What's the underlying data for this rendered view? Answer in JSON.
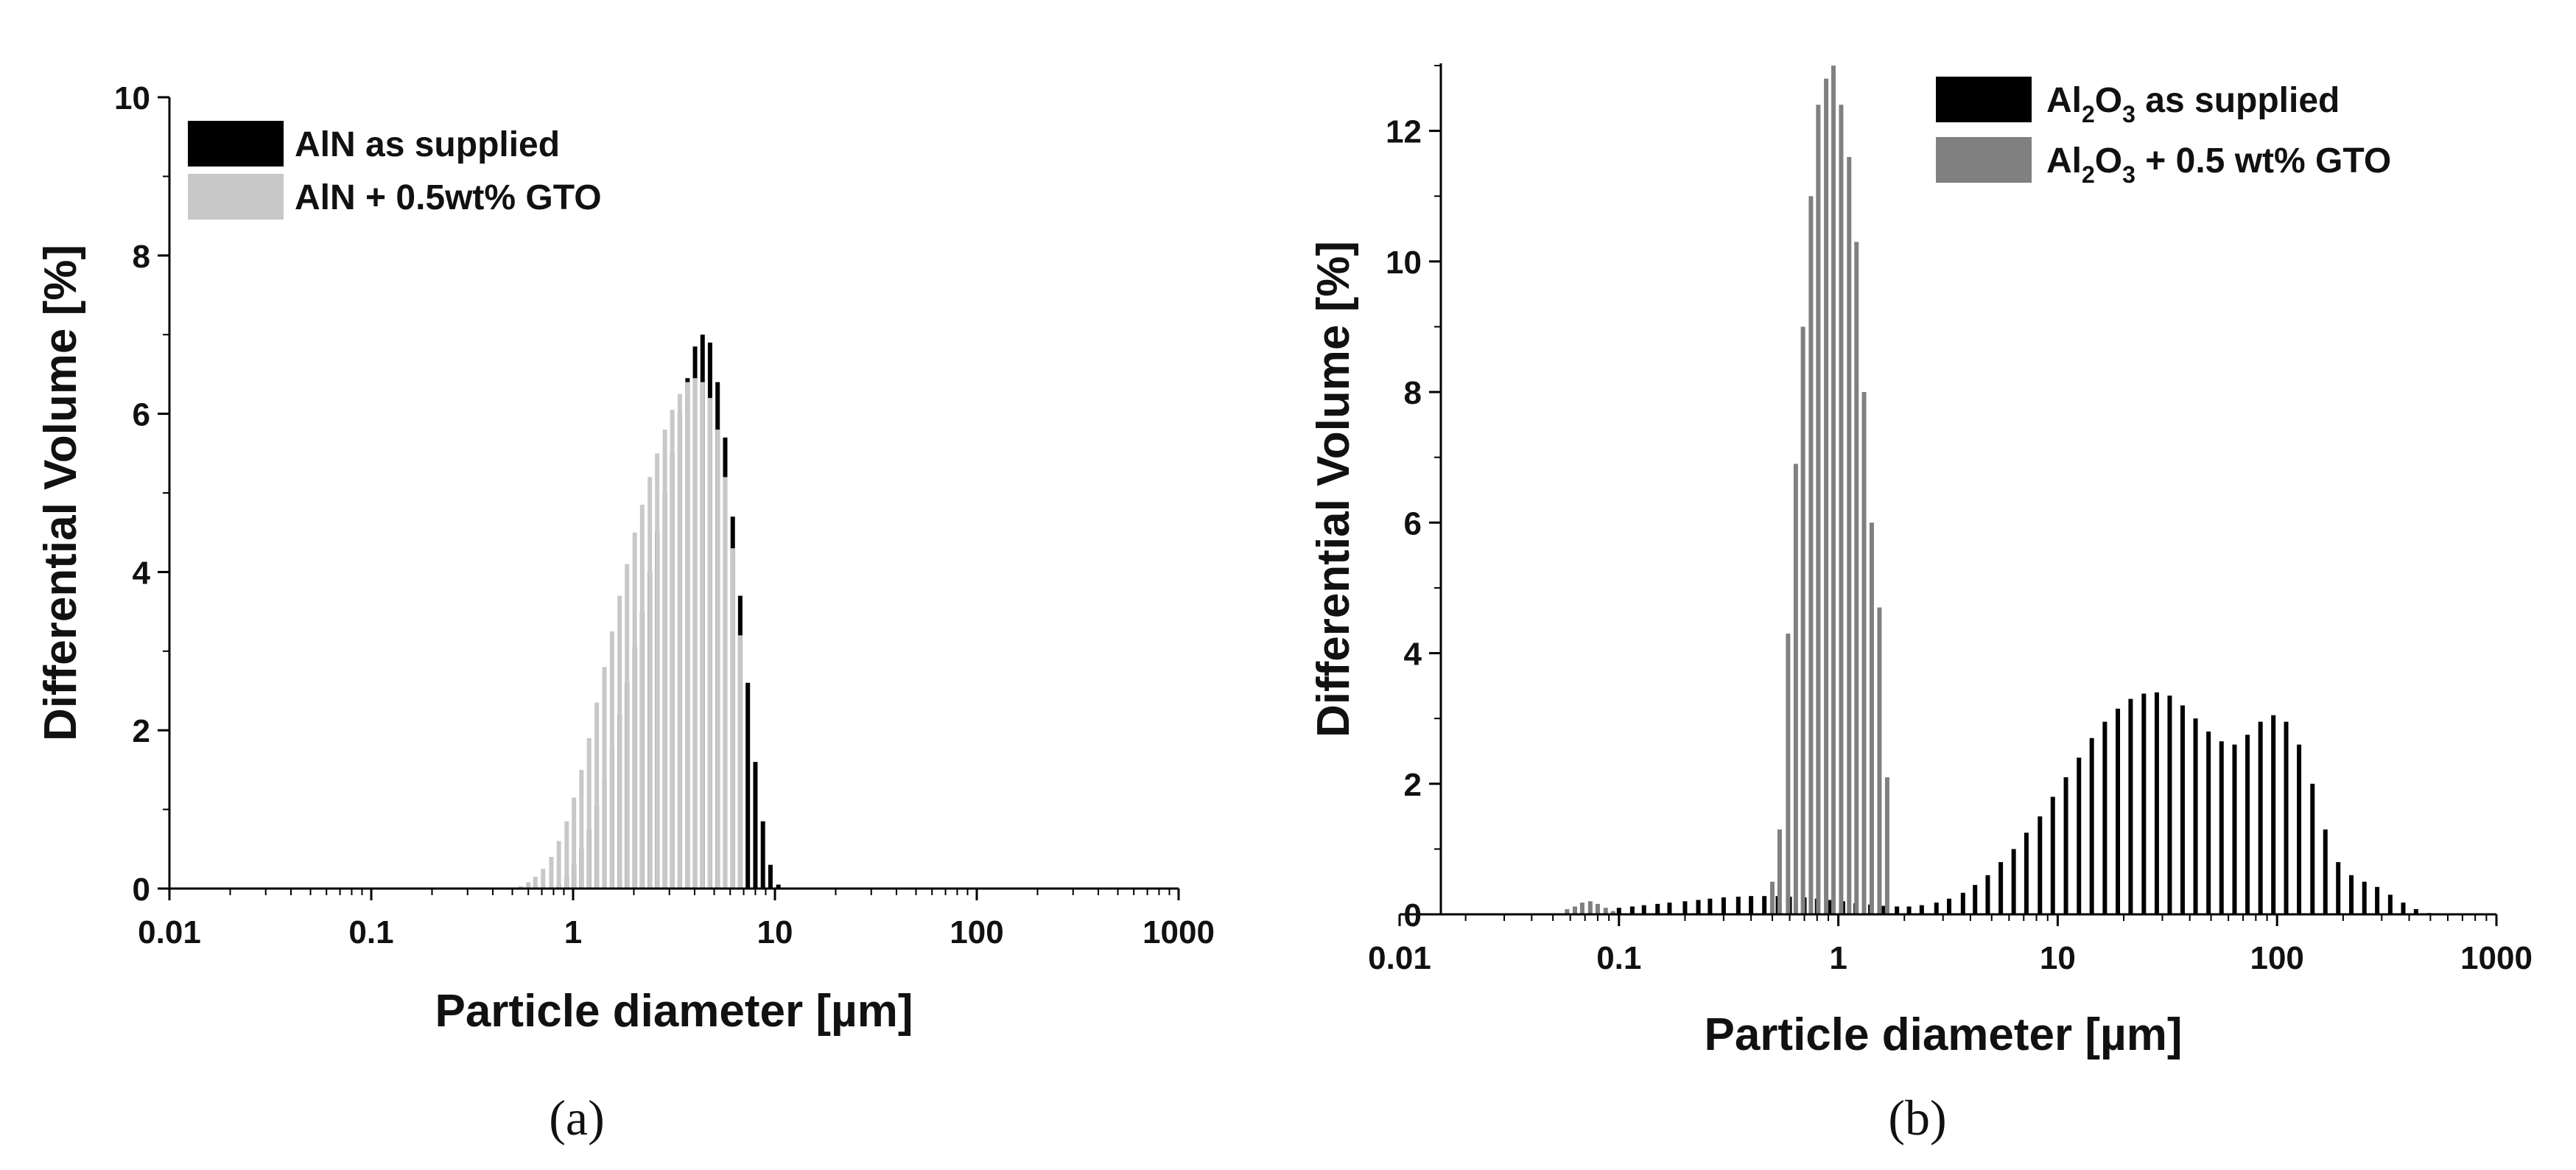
{
  "chart_data": [
    {
      "panel": "a",
      "caption": "(a)",
      "type": "bar",
      "xscale": "log",
      "xlim": [
        0.01,
        1000
      ],
      "ylim": [
        0,
        10
      ],
      "xticks": [
        "0.01",
        "0.1",
        "1",
        "10",
        "100",
        "1000"
      ],
      "yticks": [
        "0",
        "2",
        "4",
        "6",
        "8",
        "10"
      ],
      "xlabel": "Particle diameter [µm]",
      "ylabel": "Differential Volume [%]",
      "legend_position": "top-left",
      "series": [
        {
          "name": "AlN as supplied",
          "color": "#000000",
          "x": [
            0.85,
            0.93,
            1.01,
            1.1,
            1.2,
            1.31,
            1.43,
            1.56,
            1.7,
            1.85,
            2.02,
            2.2,
            2.4,
            2.61,
            2.85,
            3.1,
            3.38,
            3.69,
            4.02,
            4.38,
            4.77,
            5.2,
            5.67,
            6.18,
            6.73,
            7.34,
            8.0,
            8.72,
            9.5,
            10.4,
            11.3
          ],
          "values": [
            0.05,
            0.15,
            0.3,
            0.5,
            0.75,
            1.05,
            1.4,
            1.8,
            2.2,
            2.6,
            3.05,
            3.5,
            4.0,
            4.5,
            5.0,
            5.5,
            6.0,
            6.45,
            6.85,
            7.0,
            6.9,
            6.4,
            5.7,
            4.7,
            3.7,
            2.6,
            1.6,
            0.85,
            0.3,
            0.05,
            0.0
          ]
        },
        {
          "name": "AlN + 0.5wt% GTO",
          "color": "#c8c8c8",
          "x": [
            0.55,
            0.6,
            0.65,
            0.71,
            0.78,
            0.85,
            0.93,
            1.01,
            1.1,
            1.2,
            1.31,
            1.43,
            1.56,
            1.7,
            1.85,
            2.02,
            2.2,
            2.4,
            2.61,
            2.85,
            3.1,
            3.38,
            3.69,
            4.02,
            4.38,
            4.77,
            5.2,
            5.67,
            6.18,
            6.73
          ],
          "values": [
            0.03,
            0.08,
            0.15,
            0.25,
            0.4,
            0.6,
            0.85,
            1.15,
            1.5,
            1.9,
            2.35,
            2.8,
            3.25,
            3.7,
            4.1,
            4.5,
            4.85,
            5.2,
            5.5,
            5.8,
            6.05,
            6.25,
            6.4,
            6.45,
            6.4,
            6.2,
            5.8,
            5.2,
            4.3,
            3.2
          ]
        }
      ]
    },
    {
      "panel": "b",
      "caption": "(b)",
      "type": "bar",
      "xscale": "log",
      "xlim": [
        0.01,
        1000
      ],
      "ylim": [
        0,
        13
      ],
      "xticks": [
        "0.01",
        "0.1",
        "1",
        "10",
        "100",
        "1000"
      ],
      "yticks": [
        "0",
        "2",
        "4",
        "6",
        "8",
        "10",
        "12"
      ],
      "xlabel": "Particle diameter [µm]",
      "ylabel": "Differential Volume [%]",
      "legend_position": "top-right",
      "series": [
        {
          "name": "Al2O3 as supplied",
          "color": "#000000",
          "x": [
            0.1,
            0.115,
            0.13,
            0.15,
            0.17,
            0.2,
            0.23,
            0.26,
            0.3,
            0.35,
            0.4,
            0.46,
            0.53,
            0.6,
            0.7,
            0.8,
            0.92,
            1.05,
            1.2,
            1.4,
            1.6,
            1.85,
            2.1,
            2.4,
            2.8,
            3.2,
            3.7,
            4.2,
            4.8,
            5.5,
            6.3,
            7.2,
            8.3,
            9.5,
            10.9,
            12.5,
            14.3,
            16.4,
            18.8,
            21.5,
            24.7,
            28.3,
            32.4,
            37.1,
            42.5,
            48.7,
            55.8,
            64.0,
            73.3,
            84.0,
            96.2,
            110,
            126,
            145,
            166,
            190,
            218,
            250,
            286,
            328,
            376,
            430,
            493
          ],
          "values": [
            0.1,
            0.12,
            0.14,
            0.16,
            0.18,
            0.2,
            0.22,
            0.24,
            0.26,
            0.27,
            0.28,
            0.28,
            0.28,
            0.27,
            0.26,
            0.24,
            0.22,
            0.2,
            0.17,
            0.15,
            0.13,
            0.12,
            0.12,
            0.14,
            0.18,
            0.24,
            0.33,
            0.45,
            0.6,
            0.8,
            1.0,
            1.25,
            1.5,
            1.8,
            2.1,
            2.4,
            2.7,
            2.95,
            3.15,
            3.3,
            3.38,
            3.4,
            3.35,
            3.2,
            3.0,
            2.8,
            2.65,
            2.6,
            2.75,
            2.95,
            3.05,
            2.95,
            2.6,
            2.0,
            1.3,
            0.8,
            0.6,
            0.5,
            0.42,
            0.3,
            0.18,
            0.08,
            0.02
          ]
        },
        {
          "name": "Al2O3 + 0.5 wt% GTO",
          "color": "#808080",
          "x": [
            0.058,
            0.063,
            0.068,
            0.074,
            0.08,
            0.087,
            0.094,
            0.5,
            0.54,
            0.59,
            0.64,
            0.69,
            0.75,
            0.81,
            0.88,
            0.95,
            1.03,
            1.12,
            1.21,
            1.31,
            1.42,
            1.54,
            1.67
          ],
          "values": [
            0.08,
            0.12,
            0.18,
            0.2,
            0.16,
            0.1,
            0.05,
            0.5,
            1.3,
            4.3,
            6.9,
            9.0,
            11.0,
            12.4,
            12.8,
            13.0,
            12.4,
            11.6,
            10.3,
            8.0,
            6.0,
            4.7,
            2.1
          ]
        }
      ]
    }
  ]
}
